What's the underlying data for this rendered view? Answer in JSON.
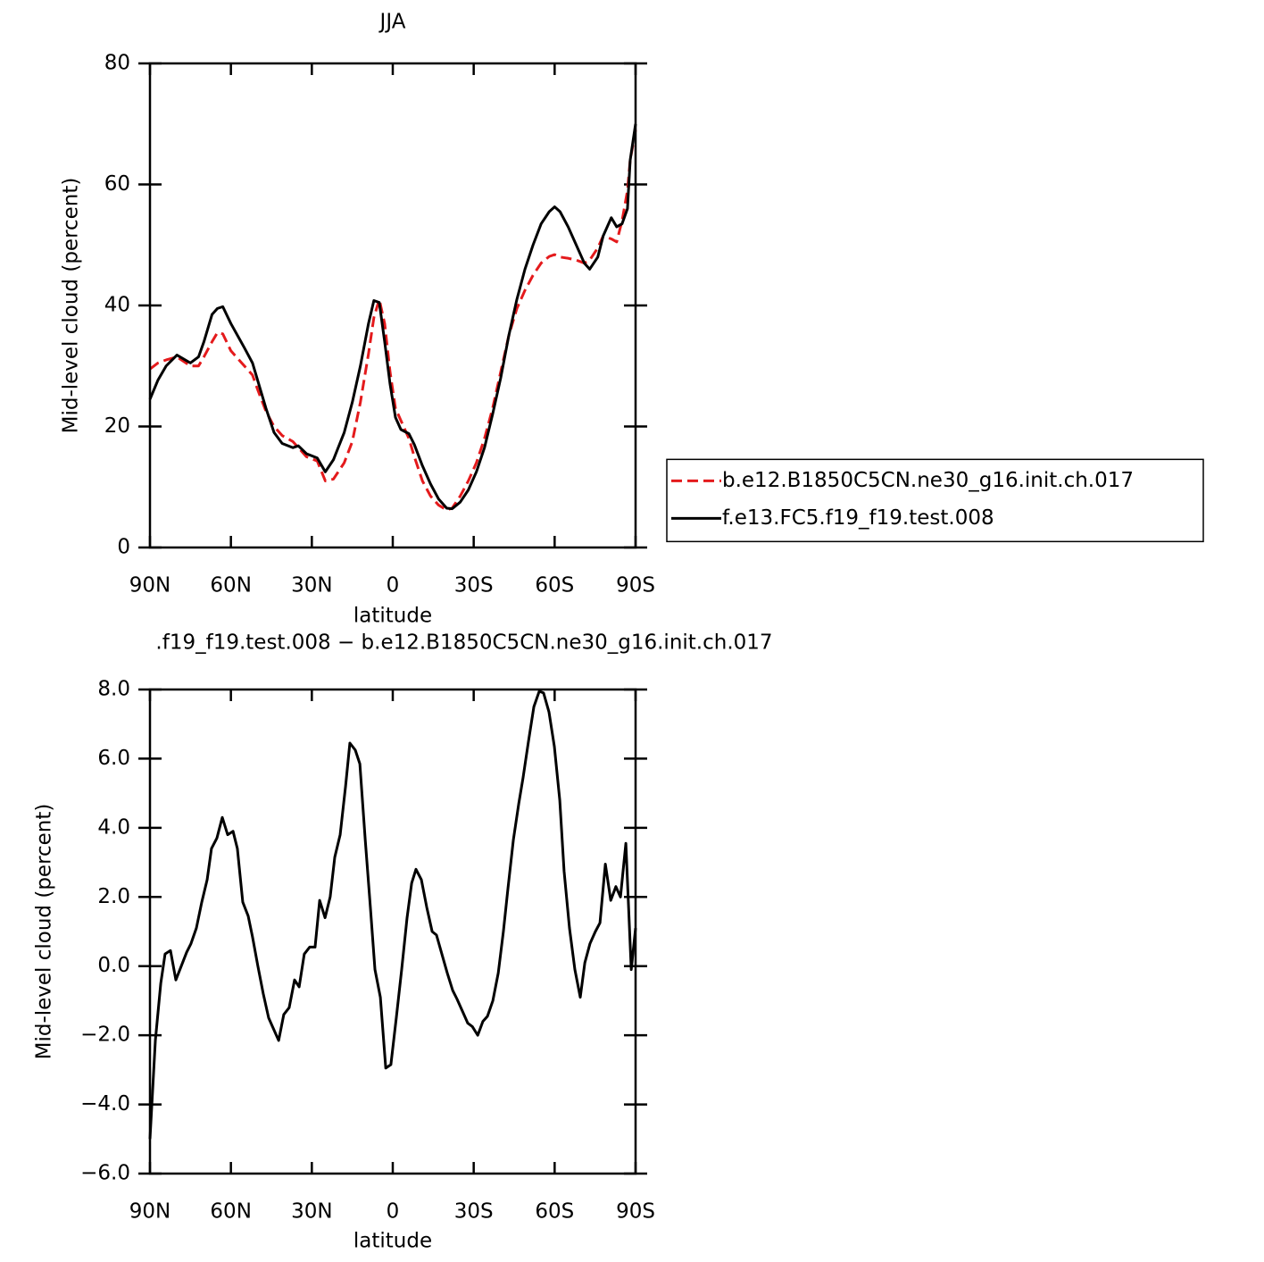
{
  "chart_data": [
    {
      "type": "line",
      "title": "JJA",
      "xlabel": "latitude",
      "ylabel": "Mid-level cloud (percent)",
      "x": [
        90,
        87,
        84,
        80,
        75,
        72,
        70,
        67,
        65,
        63,
        60,
        55,
        52,
        50,
        47,
        44,
        41,
        37,
        35,
        32,
        28,
        25,
        22,
        18,
        15,
        12,
        9,
        7,
        5,
        3,
        1,
        -1,
        -3,
        -6,
        -8,
        -11,
        -14,
        -17,
        -20,
        -22,
        -25,
        -28,
        -31,
        -34,
        -37,
        -40,
        -43,
        -46,
        -49,
        -52,
        -55,
        -58,
        -60,
        -62,
        -65,
        -68,
        -71,
        -73,
        -76,
        -78,
        -81,
        -83,
        -85,
        -87,
        -88,
        -90
      ],
      "series": [
        {
          "name": "b.e12.B1850C5CN.ne30_g16.init.ch.017",
          "color": "#e41a1c",
          "style": "dashed",
          "values": [
            29.5,
            30.5,
            31,
            31.5,
            30,
            30,
            31.5,
            34,
            35.5,
            35.3,
            32.5,
            30,
            28.5,
            26,
            22.5,
            20,
            18.5,
            17.5,
            16.5,
            15,
            14.3,
            11,
            11.3,
            14,
            17.5,
            24,
            32,
            38,
            41,
            37,
            29,
            23,
            21,
            18,
            15,
            11,
            8.5,
            7,
            6.2,
            6.5,
            8.5,
            11,
            14,
            18,
            23,
            29,
            35,
            39.5,
            42.5,
            45,
            47,
            48.1,
            48.4,
            48,
            47.8,
            47.5,
            47,
            47.5,
            49.5,
            51.5,
            51,
            50.5,
            54,
            59,
            64,
            69
          ]
        },
        {
          "name": "f.e13.FC5.f19_f19.test.008",
          "color": "#000000",
          "style": "solid",
          "values": [
            24.5,
            27.7,
            30,
            31.8,
            30.5,
            31.5,
            34,
            38.5,
            39.5,
            39.8,
            37,
            33,
            30.5,
            27.5,
            23,
            19,
            17.2,
            16.5,
            16.8,
            15.5,
            14.8,
            12.5,
            14.5,
            19,
            24,
            30,
            37,
            40.8,
            40.5,
            34,
            27,
            21.5,
            19.5,
            18.8,
            17,
            13.5,
            10.5,
            8,
            6.5,
            6.4,
            7.5,
            9.5,
            12.5,
            16.5,
            22,
            28,
            35,
            41,
            46,
            50,
            53.5,
            55.5,
            56.3,
            55.5,
            53,
            50,
            47,
            46,
            48,
            51.5,
            54.5,
            53,
            53.5,
            56,
            64,
            70
          ]
        }
      ],
      "xlim": [
        90,
        -90
      ],
      "xticks": [
        {
          "value": 90,
          "label": "90N"
        },
        {
          "value": 60,
          "label": "60N"
        },
        {
          "value": 30,
          "label": "30N"
        },
        0,
        {
          "value": -30,
          "label": "30S"
        },
        {
          "value": -60,
          "label": "60S"
        },
        {
          "value": -90,
          "label": "90S"
        }
      ],
      "ylim": [
        0,
        80
      ],
      "yticks": [
        0,
        20,
        40,
        60,
        80
      ],
      "legend": "right"
    },
    {
      "type": "line",
      "title": ".f19_f19.test.008 − b.e12.B1850C5CN.ne30_g16.init.ch.017",
      "xlabel": "latitude",
      "ylabel": "Mid-level cloud (percent)",
      "x": [
        90,
        88,
        86,
        84.4,
        82.4,
        80.4,
        78.4,
        76.4,
        74.8,
        72.8,
        70.8,
        68.8,
        67.2,
        65.2,
        63.2,
        61.2,
        59.2,
        57.6,
        55.6,
        53.6,
        52,
        50,
        48,
        46,
        44,
        42.3,
        40.4,
        38.4,
        36.4,
        34.7,
        32.8,
        30.8,
        28.8,
        27.1,
        25.1,
        23.2,
        21.5,
        19.5,
        17.5,
        15.9,
        13.9,
        12.2,
        10.2,
        8.3,
        6.6,
        4.6,
        2.6,
        0.7,
        -1.3,
        -3.3,
        -5.3,
        -7,
        -8.6,
        -10.6,
        -12.6,
        -14.6,
        -16.2,
        -18.2,
        -20.2,
        -22.2,
        -23.8,
        -25.8,
        -27.8,
        -29.5,
        -31.5,
        -33.4,
        -35.1,
        -37.1,
        -39.1,
        -41,
        -42.7,
        -44.7,
        -46.7,
        -48.3,
        -50.3,
        -52.3,
        -54.3,
        -55.9,
        -57.9,
        -59.9,
        -61.9,
        -63.5,
        -65.5,
        -67.5,
        -69.5,
        -71.2,
        -73.1,
        -75.1,
        -76.8,
        -78.8,
        -80.8,
        -82.7,
        -84.4,
        -86.4,
        -88.4,
        -90
      ],
      "series": [
        {
          "color": "#000000",
          "style": "solid",
          "values": [
            -5,
            -2.15,
            -0.5,
            0.35,
            0.45,
            -0.4,
            0,
            0.4,
            0.65,
            1.1,
            1.85,
            2.5,
            3.4,
            3.7,
            4.3,
            3.8,
            3.9,
            3.4,
            1.85,
            1.45,
            0.85,
            0,
            -0.8,
            -1.5,
            -1.85,
            -2.15,
            -1.4,
            -1.2,
            -0.4,
            -0.6,
            0.35,
            0.55,
            0.55,
            1.9,
            1.4,
            2,
            3.15,
            3.8,
            5.2,
            6.45,
            6.25,
            5.85,
            3.65,
            1.7,
            -0.1,
            -0.9,
            -2.95,
            -2.85,
            -1.5,
            -0.1,
            1.4,
            2.4,
            2.8,
            2.5,
            1.7,
            1,
            0.9,
            0.35,
            -0.2,
            -0.7,
            -0.95,
            -1.3,
            -1.65,
            -1.75,
            -2,
            -1.6,
            -1.45,
            -1,
            -0.2,
            1,
            2.25,
            3.65,
            4.7,
            5.45,
            6.5,
            7.5,
            7.95,
            7.9,
            7.35,
            6.35,
            4.8,
            2.75,
            1.1,
            -0.1,
            -0.9,
            0.1,
            0.65,
            1,
            1.25,
            2.95,
            1.9,
            2.3,
            2,
            3.55,
            -0.1,
            1.1
          ]
        }
      ],
      "xlim": [
        90,
        -90
      ],
      "xticks": [
        {
          "value": 90,
          "label": "90N"
        },
        {
          "value": 60,
          "label": "60N"
        },
        {
          "value": 30,
          "label": "30N"
        },
        0,
        {
          "value": -30,
          "label": "30S"
        },
        {
          "value": -60,
          "label": "60S"
        },
        {
          "value": -90,
          "label": "90S"
        }
      ],
      "ylim": [
        -6,
        8
      ],
      "yticks": [
        {
          "value": -6,
          "label": "−6.0"
        },
        {
          "value": -4,
          "label": "−4.0"
        },
        {
          "value": -2,
          "label": "−2.0"
        },
        {
          "value": 0,
          "label": "0.0"
        },
        {
          "value": 2,
          "label": "2.0"
        },
        {
          "value": 4,
          "label": "4.0"
        },
        {
          "value": 6,
          "label": "6.0"
        },
        {
          "value": 8,
          "label": "8.0"
        }
      ]
    }
  ]
}
